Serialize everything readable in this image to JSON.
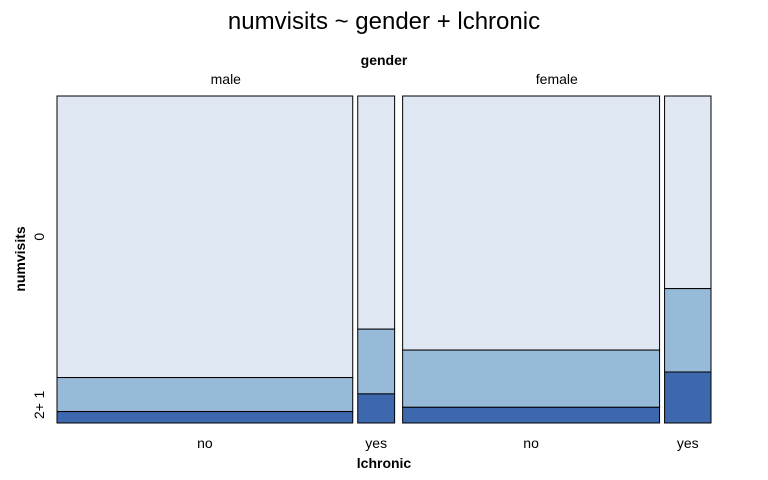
{
  "chart_data": {
    "type": "mosaic",
    "title": "numvisits ~ gender + lchronic",
    "column_variable": "gender",
    "column_levels": [
      "male",
      "female"
    ],
    "split_variable": "lchronic",
    "split_levels": [
      "no",
      "yes"
    ],
    "row_variable": "numvisits",
    "row_levels": [
      "0",
      "1",
      "2+"
    ],
    "colors": {
      "0": "#dfe7f3",
      "1": "#97bad8",
      "2+": "#3d68ae"
    },
    "border_color": "#000000",
    "cells": [
      {
        "gender": "male",
        "lchronic": "no",
        "col_share": 0.465,
        "fractions": {
          "0": 0.861,
          "1": 0.104,
          "2+": 0.035
        }
      },
      {
        "gender": "male",
        "lchronic": "yes",
        "col_share": 0.058,
        "fractions": {
          "0": 0.713,
          "1": 0.198,
          "2+": 0.089
        }
      },
      {
        "gender": "female",
        "lchronic": "no",
        "col_share": 0.404,
        "fractions": {
          "0": 0.777,
          "1": 0.175,
          "2+": 0.048
        }
      },
      {
        "gender": "female",
        "lchronic": "yes",
        "col_share": 0.073,
        "fractions": {
          "0": 0.589,
          "1": 0.255,
          "2+": 0.156
        }
      }
    ]
  }
}
